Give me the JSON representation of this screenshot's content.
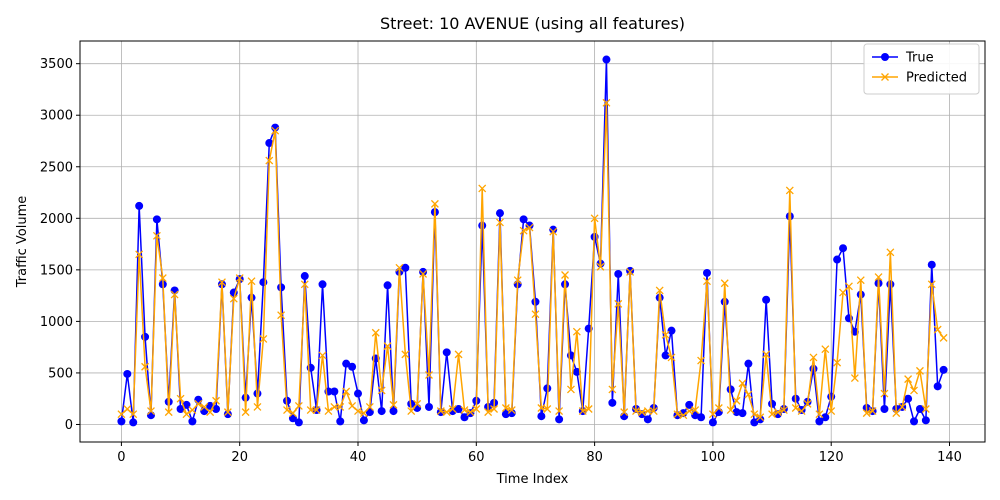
{
  "chart_data": {
    "type": "line",
    "title": "Street: 10 AVENUE (using all features)",
    "xlabel": "Time Index",
    "ylabel": "Traffic Volume",
    "xlim": [
      -7,
      146
    ],
    "ylim": [
      -170,
      3720
    ],
    "x_ticks": [
      0,
      20,
      40,
      60,
      80,
      100,
      120,
      140
    ],
    "y_ticks": [
      0,
      500,
      1000,
      1500,
      2000,
      2500,
      3000,
      3500
    ],
    "grid": true,
    "legend_position": "top-right",
    "series": [
      {
        "name": "True",
        "color": "#0000ff",
        "marker": "circle",
        "values": [
          30,
          490,
          20,
          2120,
          850,
          90,
          1990,
          1360,
          220,
          1300,
          150,
          190,
          30,
          240,
          130,
          180,
          150,
          1360,
          100,
          1280,
          1410,
          260,
          1230,
          300,
          1380,
          2730,
          2880,
          1330,
          230,
          60,
          20,
          1440,
          550,
          140,
          1360,
          320,
          320,
          30,
          590,
          560,
          300,
          40,
          120,
          640,
          130,
          1350,
          130,
          1480,
          1520,
          200,
          160,
          1480,
          170,
          2060,
          120,
          700,
          130,
          150,
          70,
          110,
          230,
          1930,
          170,
          210,
          2050,
          100,
          110,
          1360,
          1990,
          1930,
          1190,
          80,
          350,
          1890,
          50,
          1360,
          670,
          510,
          130,
          930,
          1820,
          1560,
          3540,
          210,
          1460,
          80,
          1490,
          150,
          100,
          50,
          160,
          1230,
          670,
          910,
          90,
          110,
          190,
          90,
          70,
          1470,
          20,
          120,
          1190,
          340,
          120,
          110,
          590,
          20,
          50,
          1210,
          200,
          100,
          150,
          2020,
          250,
          140,
          220,
          540,
          30,
          70,
          270,
          1600,
          1710,
          1030,
          900,
          1260,
          160,
          130,
          1370,
          150,
          1360,
          150,
          170,
          250,
          30,
          150,
          40,
          1550,
          370,
          530
        ]
      },
      {
        "name": "Predicted",
        "color": "#ffa500",
        "marker": "x",
        "values": [
          100,
          150,
          100,
          1650,
          560,
          130,
          1830,
          1420,
          120,
          1260,
          250,
          100,
          140,
          200,
          170,
          120,
          230,
          1380,
          120,
          1220,
          1420,
          120,
          1390,
          170,
          830,
          2560,
          2850,
          1060,
          140,
          110,
          180,
          1360,
          140,
          140,
          670,
          130,
          170,
          170,
          320,
          180,
          130,
          110,
          170,
          890,
          330,
          760,
          190,
          1520,
          680,
          130,
          200,
          1460,
          480,
          2140,
          130,
          120,
          150,
          680,
          140,
          120,
          150,
          2290,
          120,
          150,
          1960,
          160,
          140,
          1400,
          1880,
          1910,
          1070,
          160,
          150,
          1870,
          130,
          1450,
          340,
          900,
          130,
          150,
          2000,
          1530,
          3120,
          340,
          1170,
          120,
          1480,
          130,
          120,
          130,
          130,
          1300,
          870,
          650,
          100,
          90,
          130,
          140,
          620,
          1390,
          100,
          160,
          1370,
          140,
          230,
          400,
          290,
          100,
          70,
          680,
          100,
          120,
          140,
          2270,
          160,
          130,
          200,
          650,
          100,
          730,
          130,
          600,
          1280,
          1340,
          450,
          1400,
          110,
          130,
          1430,
          300,
          1670,
          110,
          170,
          440,
          330,
          520,
          150,
          1360,
          920,
          840
        ]
      }
    ]
  }
}
